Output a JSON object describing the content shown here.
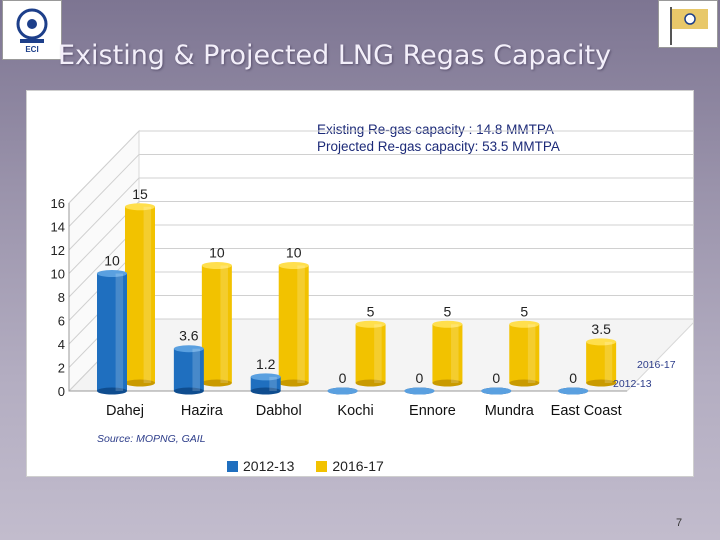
{
  "slide": {
    "title": "Existing & Projected LNG Regas Capacity",
    "page_number": "7",
    "logo_left_text": "ECI"
  },
  "info": {
    "line1": "Existing  Re-gas capacity  : 14.8 MMTPA",
    "line2": "Projected Re-gas capacity: 53.5 MMTPA"
  },
  "source": "Source: MOPNG, GAIL",
  "colors": {
    "series_2012": "#1f6fbf",
    "series_2016": "#f2c200",
    "title_text": "#f3effa"
  },
  "chart_data": {
    "type": "bar",
    "categories": [
      "Dahej",
      "Hazira",
      "Dabhol",
      "Kochi",
      "Ennore",
      "Mundra",
      "East Coast"
    ],
    "series": [
      {
        "name": "2012-13",
        "values": [
          10,
          3.6,
          1.2,
          0,
          0,
          0,
          0
        ],
        "labels": [
          "10",
          "3.6",
          "1.2",
          "0",
          "0",
          "0",
          "0"
        ]
      },
      {
        "name": "2016-17",
        "values": [
          15,
          10,
          10,
          5,
          5,
          5,
          3.5
        ],
        "labels": [
          "15",
          "10",
          "10",
          "5",
          "5",
          "5",
          "3.5"
        ]
      }
    ],
    "yticks": [
      "0",
      "2",
      "4",
      "6",
      "8",
      "10",
      "12",
      "14",
      "16"
    ],
    "ylim": [
      0,
      16
    ],
    "depth_labels": [
      "2016-17",
      "2012-13"
    ],
    "legend": "bottom",
    "grid": true
  }
}
